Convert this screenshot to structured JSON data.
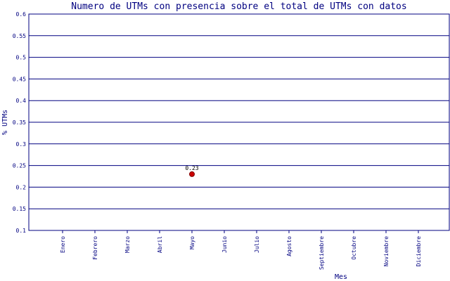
{
  "chart_data": {
    "type": "scatter",
    "title": "Numero de UTMs con presencia sobre el total de UTMs con datos",
    "xlabel": "Mes",
    "ylabel": "% UTMs",
    "categories": [
      "Enero",
      "Febrero",
      "Marzo",
      "Abril",
      "Mayo",
      "Junio",
      "Julio",
      "Agosto",
      "Septiembre",
      "Octubre",
      "Noviembre",
      "Diciembre"
    ],
    "ylim": [
      0.1,
      0.6
    ],
    "yticks": [
      "0.1",
      "0.15",
      "0.2",
      "0.25",
      "0.3",
      "0.35",
      "0.4",
      "0.45",
      "0.5",
      "0.55",
      "0.6"
    ],
    "grid": true,
    "series": [
      {
        "points": [
          {
            "x": "Mayo",
            "y": 0.23,
            "label": "0.23"
          }
        ]
      }
    ],
    "colors": {
      "text": "#000080",
      "grid": "#000080",
      "point": "#cc0000",
      "point_stroke": "#800000"
    }
  }
}
